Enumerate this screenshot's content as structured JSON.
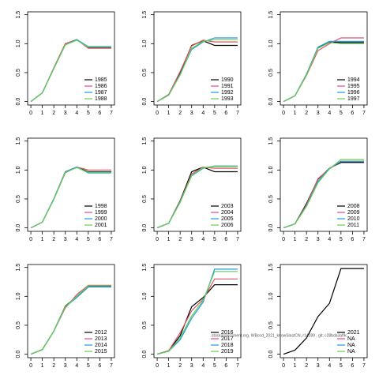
{
  "chart_data": [
    {
      "type": "line",
      "x": [
        0,
        1,
        2,
        3,
        4,
        5,
        6,
        7
      ],
      "xlim": [
        -0.28,
        7.28
      ],
      "ylim": [
        -0.06,
        1.55
      ],
      "xticks": [
        0,
        1,
        2,
        3,
        4,
        5,
        6,
        7
      ],
      "yticks": [
        {
          "value": 0,
          "label": "0.0"
        },
        {
          "value": 0.5,
          "label": "0.5"
        },
        {
          "value": 1,
          "label": "1.0"
        },
        {
          "value": 1.5,
          "label": "1.5"
        }
      ],
      "legend": "bottomright",
      "series": [
        {
          "name": "1985",
          "color": "#000000",
          "values": [
            0,
            0.15,
            0.58,
            1.0,
            1.07,
            0.93,
            0.93,
            0.93
          ]
        },
        {
          "name": "1986",
          "color": "#df536b",
          "values": [
            0,
            0.15,
            0.58,
            1.0,
            1.07,
            0.92,
            0.92,
            0.92
          ]
        },
        {
          "name": "1987",
          "color": "#2297e6",
          "values": [
            0,
            0.15,
            0.57,
            0.98,
            1.07,
            0.95,
            0.95,
            0.95
          ]
        },
        {
          "name": "1988",
          "color": "#61d04f",
          "values": [
            0,
            0.15,
            0.57,
            0.98,
            1.06,
            0.94,
            0.94,
            0.94
          ]
        }
      ]
    },
    {
      "type": "line",
      "x": [
        0,
        1,
        2,
        3,
        4,
        5,
        6,
        7
      ],
      "xlim": [
        -0.28,
        7.28
      ],
      "ylim": [
        -0.06,
        1.55
      ],
      "xticks": [
        0,
        1,
        2,
        3,
        4,
        5,
        6,
        7
      ],
      "yticks": [
        {
          "value": 0,
          "label": "0.0"
        },
        {
          "value": 0.5,
          "label": "0.5"
        },
        {
          "value": 1,
          "label": "1.0"
        },
        {
          "value": 1.5,
          "label": "1.5"
        }
      ],
      "legend": "bottomright",
      "series": [
        {
          "name": "1990",
          "color": "#000000",
          "values": [
            0,
            0.12,
            0.5,
            0.97,
            1.05,
            0.97,
            0.97,
            0.97
          ]
        },
        {
          "name": "1991",
          "color": "#df536b",
          "values": [
            0,
            0.12,
            0.52,
            0.96,
            1.06,
            1.03,
            1.03,
            1.03
          ]
        },
        {
          "name": "1992",
          "color": "#2297e6",
          "values": [
            0,
            0.11,
            0.47,
            0.9,
            1.03,
            1.1,
            1.1,
            1.1
          ]
        },
        {
          "name": "1993",
          "color": "#61d04f",
          "values": [
            0,
            0.11,
            0.46,
            0.92,
            1.04,
            1.07,
            1.07,
            1.07
          ]
        }
      ]
    },
    {
      "type": "line",
      "x": [
        0,
        1,
        2,
        3,
        4,
        5,
        6,
        7
      ],
      "xlim": [
        -0.28,
        7.28
      ],
      "ylim": [
        -0.06,
        1.55
      ],
      "xticks": [
        0,
        1,
        2,
        3,
        4,
        5,
        6,
        7
      ],
      "yticks": [
        {
          "value": 0,
          "label": "0.0"
        },
        {
          "value": 0.5,
          "label": "0.5"
        },
        {
          "value": 1,
          "label": "1.0"
        },
        {
          "value": 1.5,
          "label": "1.5"
        }
      ],
      "legend": "bottomright",
      "series": [
        {
          "name": "1994",
          "color": "#000000",
          "values": [
            0,
            0.1,
            0.47,
            0.93,
            1.03,
            1.02,
            1.02,
            1.02
          ]
        },
        {
          "name": "1995",
          "color": "#df536b",
          "values": [
            0,
            0.1,
            0.45,
            0.88,
            1.0,
            1.1,
            1.1,
            1.1
          ]
        },
        {
          "name": "1996",
          "color": "#2297e6",
          "values": [
            0,
            0.1,
            0.47,
            0.94,
            1.04,
            1.04,
            1.04,
            1.04
          ]
        },
        {
          "name": "1997",
          "color": "#61d04f",
          "values": [
            0,
            0.1,
            0.46,
            0.92,
            1.02,
            1.0,
            1.0,
            1.0
          ]
        }
      ]
    },
    {
      "type": "line",
      "x": [
        0,
        1,
        2,
        3,
        4,
        5,
        6,
        7
      ],
      "xlim": [
        -0.28,
        7.28
      ],
      "ylim": [
        -0.06,
        1.55
      ],
      "xticks": [
        0,
        1,
        2,
        3,
        4,
        5,
        6,
        7
      ],
      "yticks": [
        {
          "value": 0,
          "label": "0.0"
        },
        {
          "value": 0.5,
          "label": "0.5"
        },
        {
          "value": 1,
          "label": "1.0"
        },
        {
          "value": 1.5,
          "label": "1.5"
        }
      ],
      "legend": "bottomright",
      "series": [
        {
          "name": "1998",
          "color": "#000000",
          "values": [
            0,
            0.1,
            0.5,
            0.97,
            1.05,
            0.97,
            0.97,
            0.97
          ]
        },
        {
          "name": "1999",
          "color": "#df536b",
          "values": [
            0,
            0.1,
            0.5,
            0.95,
            1.05,
            1.0,
            1.0,
            1.0
          ]
        },
        {
          "name": "2000",
          "color": "#2297e6",
          "values": [
            0,
            0.1,
            0.5,
            0.97,
            1.05,
            0.95,
            0.95,
            0.95
          ]
        },
        {
          "name": "2001",
          "color": "#61d04f",
          "values": [
            0,
            0.1,
            0.49,
            0.96,
            1.04,
            0.96,
            0.96,
            0.96
          ]
        }
      ]
    },
    {
      "type": "line",
      "x": [
        0,
        1,
        2,
        3,
        4,
        5,
        6,
        7
      ],
      "xlim": [
        -0.28,
        7.28
      ],
      "ylim": [
        -0.06,
        1.55
      ],
      "xticks": [
        0,
        1,
        2,
        3,
        4,
        5,
        6,
        7
      ],
      "yticks": [
        {
          "value": 0,
          "label": "0.0"
        },
        {
          "value": 0.5,
          "label": "0.5"
        },
        {
          "value": 1,
          "label": "1.0"
        },
        {
          "value": 1.5,
          "label": "1.5"
        }
      ],
      "legend": "bottomright",
      "series": [
        {
          "name": "2003",
          "color": "#000000",
          "values": [
            0,
            0.08,
            0.47,
            0.97,
            1.05,
            0.97,
            0.97,
            0.97
          ]
        },
        {
          "name": "2004",
          "color": "#df536b",
          "values": [
            0,
            0.08,
            0.46,
            0.93,
            1.05,
            1.03,
            1.03,
            1.03
          ]
        },
        {
          "name": "2005",
          "color": "#2297e6",
          "values": [
            0,
            0.08,
            0.45,
            0.9,
            1.03,
            1.07,
            1.07,
            1.07
          ]
        },
        {
          "name": "2006",
          "color": "#61d04f",
          "values": [
            0,
            0.08,
            0.44,
            0.91,
            1.04,
            1.06,
            1.06,
            1.06
          ]
        }
      ]
    },
    {
      "type": "line",
      "x": [
        0,
        1,
        2,
        3,
        4,
        5,
        6,
        7
      ],
      "xlim": [
        -0.28,
        7.28
      ],
      "ylim": [
        -0.06,
        1.55
      ],
      "xticks": [
        0,
        1,
        2,
        3,
        4,
        5,
        6,
        7
      ],
      "yticks": [
        {
          "value": 0,
          "label": "0.0"
        },
        {
          "value": 0.5,
          "label": "0.5"
        },
        {
          "value": 1,
          "label": "1.0"
        },
        {
          "value": 1.5,
          "label": "1.5"
        }
      ],
      "legend": "bottomright",
      "series": [
        {
          "name": "2008",
          "color": "#000000",
          "values": [
            0,
            0.07,
            0.42,
            0.84,
            1.03,
            1.13,
            1.13,
            1.13
          ]
        },
        {
          "name": "2009",
          "color": "#df536b",
          "values": [
            0,
            0.07,
            0.4,
            0.85,
            1.02,
            1.15,
            1.15,
            1.15
          ]
        },
        {
          "name": "2010",
          "color": "#2297e6",
          "values": [
            0,
            0.07,
            0.38,
            0.8,
            1.03,
            1.15,
            1.15,
            1.15
          ]
        },
        {
          "name": "2011",
          "color": "#61d04f",
          "values": [
            0,
            0.07,
            0.37,
            0.78,
            1.02,
            1.18,
            1.18,
            1.18
          ]
        }
      ]
    },
    {
      "type": "line",
      "x": [
        0,
        1,
        2,
        3,
        4,
        5,
        6,
        7
      ],
      "xlim": [
        -0.28,
        7.28
      ],
      "ylim": [
        -0.06,
        1.55
      ],
      "xticks": [
        0,
        1,
        2,
        3,
        4,
        5,
        6,
        7
      ],
      "yticks": [
        {
          "value": 0,
          "label": "0.0"
        },
        {
          "value": 0.5,
          "label": "0.5"
        },
        {
          "value": 1,
          "label": "1.0"
        },
        {
          "value": 1.5,
          "label": "1.5"
        }
      ],
      "legend": "bottomright",
      "series": [
        {
          "name": "2012",
          "color": "#000000",
          "values": [
            0,
            0.08,
            0.4,
            0.83,
            1.0,
            1.17,
            1.17,
            1.17
          ]
        },
        {
          "name": "2013",
          "color": "#df536b",
          "values": [
            0,
            0.08,
            0.4,
            0.8,
            1.03,
            1.19,
            1.19,
            1.19
          ]
        },
        {
          "name": "2014",
          "color": "#2297e6",
          "values": [
            0,
            0.08,
            0.4,
            0.82,
            0.98,
            1.16,
            1.16,
            1.16
          ]
        },
        {
          "name": "2015",
          "color": "#61d04f",
          "values": [
            0,
            0.08,
            0.4,
            0.82,
            1.0,
            1.18,
            1.18,
            1.18
          ]
        }
      ]
    },
    {
      "type": "line",
      "x": [
        0,
        1,
        2,
        3,
        4,
        5,
        6,
        7
      ],
      "xlim": [
        -0.28,
        7.28
      ],
      "ylim": [
        -0.06,
        1.55
      ],
      "xticks": [
        0,
        1,
        2,
        3,
        4,
        5,
        6,
        7
      ],
      "yticks": [
        {
          "value": 0,
          "label": "0.0"
        },
        {
          "value": 0.5,
          "label": "0.5"
        },
        {
          "value": 1,
          "label": "1.0"
        },
        {
          "value": 1.5,
          "label": "1.5"
        }
      ],
      "legend": "bottomright",
      "annotation": "stockassessment.org, WBcod_2021_knowSlastCN, r14289 , git: c28bda3af9c",
      "series": [
        {
          "name": "2016",
          "color": "#000000",
          "values": [
            0,
            0.06,
            0.32,
            0.82,
            0.98,
            1.2,
            1.2,
            1.2
          ]
        },
        {
          "name": "2017",
          "color": "#df536b",
          "values": [
            0,
            0.06,
            0.37,
            0.75,
            0.95,
            1.3,
            1.3,
            1.3
          ]
        },
        {
          "name": "2018",
          "color": "#2297e6",
          "values": [
            0,
            0.05,
            0.25,
            0.62,
            0.9,
            1.47,
            1.47,
            1.47
          ]
        },
        {
          "name": "2019",
          "color": "#61d04f",
          "values": [
            0,
            0.05,
            0.28,
            0.66,
            0.93,
            1.43,
            1.43,
            1.43
          ]
        }
      ]
    },
    {
      "type": "line",
      "x": [
        0,
        1,
        2,
        3,
        4,
        5,
        6,
        7
      ],
      "xlim": [
        -0.28,
        7.28
      ],
      "ylim": [
        -0.06,
        1.55
      ],
      "xticks": [
        0,
        1,
        2,
        3,
        4,
        5,
        6,
        7
      ],
      "yticks": [
        {
          "value": 0,
          "label": "0.0"
        },
        {
          "value": 0.5,
          "label": "0.5"
        },
        {
          "value": 1,
          "label": "1.0"
        },
        {
          "value": 1.5,
          "label": "1.5"
        }
      ],
      "legend": "bottomright",
      "series": [
        {
          "name": "2021",
          "color": "#000000",
          "values": [
            0,
            0.07,
            0.28,
            0.65,
            0.88,
            1.48,
            1.48,
            1.48
          ]
        },
        {
          "name": "NA",
          "color": "#df536b",
          "values": [
            null,
            null,
            null,
            null,
            null,
            null,
            null,
            null
          ]
        },
        {
          "name": "NA",
          "color": "#2297e6",
          "values": [
            null,
            null,
            null,
            null,
            null,
            null,
            null,
            null
          ]
        },
        {
          "name": "NA",
          "color": "#61d04f",
          "values": [
            null,
            null,
            null,
            null,
            null,
            null,
            null,
            null
          ]
        }
      ]
    }
  ]
}
